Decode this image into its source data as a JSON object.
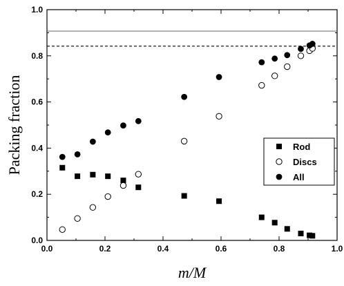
{
  "chart_data": {
    "type": "scatter",
    "xlabel": "m/M",
    "ylabel": "Packing fraction",
    "xlim": [
      0.0,
      1.0
    ],
    "ylim": [
      0.0,
      1.0
    ],
    "x_ticks": [
      0.0,
      0.2,
      0.4,
      0.6,
      0.8,
      1.0
    ],
    "x_tick_labels": [
      "0.0",
      "0.2",
      "0.4",
      "0.6",
      "0.8",
      "1.0"
    ],
    "y_ticks": [
      0.0,
      0.2,
      0.4,
      0.6,
      0.8,
      1.0
    ],
    "y_tick_labels": [
      "0.0",
      "0.2",
      "0.4",
      "0.6",
      "0.8",
      "1.0"
    ],
    "grid": false,
    "legend_position": "right",
    "series": [
      {
        "name": "Rod",
        "marker": "filled-square",
        "color": "#000000",
        "x": [
          0.053,
          0.105,
          0.158,
          0.21,
          0.263,
          0.315,
          0.473,
          0.593,
          0.74,
          0.785,
          0.828,
          0.875,
          0.905,
          0.915
        ],
        "y": [
          0.315,
          0.278,
          0.285,
          0.278,
          0.26,
          0.23,
          0.193,
          0.17,
          0.1,
          0.077,
          0.05,
          0.03,
          0.022,
          0.02
        ]
      },
      {
        "name": "Discs",
        "marker": "open-circle",
        "color": "#000000",
        "x": [
          0.053,
          0.105,
          0.158,
          0.21,
          0.263,
          0.315,
          0.473,
          0.593,
          0.74,
          0.785,
          0.828,
          0.875,
          0.905,
          0.915
        ],
        "y": [
          0.047,
          0.095,
          0.143,
          0.19,
          0.238,
          0.287,
          0.43,
          0.538,
          0.672,
          0.713,
          0.753,
          0.8,
          0.822,
          0.832
        ]
      },
      {
        "name": "All",
        "marker": "filled-circle",
        "color": "#000000",
        "x": [
          0.053,
          0.105,
          0.158,
          0.21,
          0.263,
          0.315,
          0.473,
          0.593,
          0.74,
          0.785,
          0.828,
          0.875,
          0.905,
          0.915
        ],
        "y": [
          0.362,
          0.373,
          0.428,
          0.468,
          0.498,
          0.517,
          0.622,
          0.708,
          0.772,
          0.788,
          0.803,
          0.83,
          0.845,
          0.852
        ]
      }
    ],
    "reference_lines": [
      {
        "y": 0.9069,
        "style": "solid"
      },
      {
        "y": 0.8418,
        "style": "dashed"
      }
    ]
  }
}
